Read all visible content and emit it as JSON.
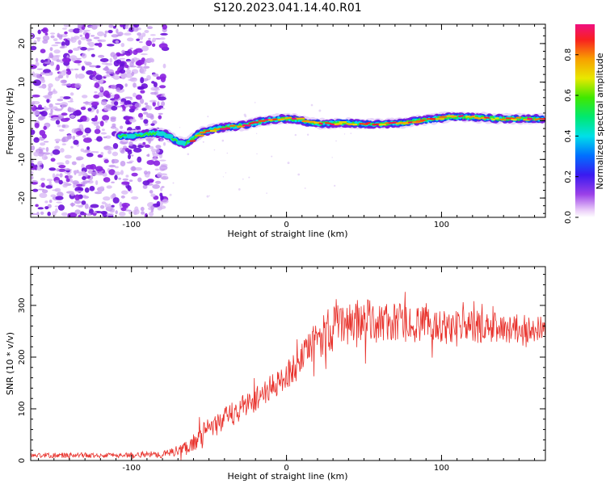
{
  "page_title": "S120.2023.041.14.40.R01",
  "chart_data": [
    {
      "type": "heatmap",
      "title": "",
      "xlabel": "Height of straight line (km)",
      "ylabel": "Frequency (Hz)",
      "xlim": [
        -165,
        167
      ],
      "ylim": [
        -25,
        25
      ],
      "x_ticks": [
        {
          "value": -100,
          "label": "-100"
        },
        {
          "value": 0,
          "label": "0"
        },
        {
          "value": 100,
          "label": "100"
        }
      ],
      "y_ticks": [
        {
          "value": -20,
          "label": "-20"
        },
        {
          "value": -10,
          "label": "-10"
        },
        {
          "value": 0,
          "label": "0"
        },
        {
          "value": 10,
          "label": "10"
        },
        {
          "value": 20,
          "label": "20"
        }
      ],
      "noise_region": {
        "x_range": [
          -165,
          -78
        ],
        "y_range": [
          -25,
          25
        ],
        "amplitude_range": [
          0.05,
          0.15
        ]
      },
      "ridge": {
        "x": [
          -108,
          -100,
          -92,
          -85,
          -78,
          -72,
          -66,
          -62,
          -55,
          -45,
          -35,
          -25,
          -15,
          -5,
          5,
          15,
          25,
          35,
          45,
          55,
          65,
          75,
          85,
          95,
          105,
          115,
          125,
          135,
          145,
          155,
          165
        ],
        "frequency": [
          -4,
          -4,
          -3.5,
          -3.2,
          -3.5,
          -5,
          -6,
          -5,
          -3,
          -2,
          -1.5,
          -1,
          0,
          0.5,
          0.5,
          -0.5,
          -0.8,
          -0.5,
          -0.8,
          -0.8,
          -0.8,
          -0.6,
          0,
          0.5,
          1,
          1,
          0.8,
          0.6,
          0.5,
          0.5,
          0.5
        ],
        "amplitude": [
          0.35,
          0.4,
          0.4,
          0.4,
          0.5,
          0.75,
          0.85,
          0.85,
          0.9,
          0.9,
          0.9,
          0.92,
          0.92,
          0.92,
          0.92,
          0.92,
          0.92,
          0.92,
          0.92,
          0.92,
          0.92,
          0.92,
          0.92,
          0.92,
          0.92,
          0.92,
          0.92,
          0.92,
          0.92,
          0.92,
          0.92
        ]
      },
      "colorbar": {
        "label": "Normalized spectral amplitude",
        "range": [
          0,
          0.95
        ],
        "ticks": [
          {
            "value": 0.0,
            "label": "0.0"
          },
          {
            "value": 0.2,
            "label": "0.2"
          },
          {
            "value": 0.4,
            "label": "0.4"
          },
          {
            "value": 0.6,
            "label": "0.6"
          },
          {
            "value": 0.8,
            "label": "0.8"
          }
        ],
        "colormap": "rainbow: white, violet, purple, blue, cyan, green, yellow, orange, red, magenta"
      },
      "grid": false
    },
    {
      "type": "line",
      "title": "",
      "xlabel": "Height of straight line (km)",
      "ylabel": "SNR (10 * v/v)",
      "xlim": [
        -165,
        167
      ],
      "ylim": [
        0,
        375
      ],
      "x_ticks": [
        {
          "value": -100,
          "label": "-100"
        },
        {
          "value": 0,
          "label": "0"
        },
        {
          "value": 100,
          "label": "100"
        }
      ],
      "y_ticks": [
        {
          "value": 0,
          "label": "0"
        },
        {
          "value": 100,
          "label": "100"
        },
        {
          "value": 200,
          "label": "200"
        },
        {
          "value": 300,
          "label": "300"
        }
      ],
      "color": "#e8302a",
      "grid": false,
      "series": [
        {
          "x": [
            -165,
            -150,
            -130,
            -110,
            -90,
            -80,
            -75,
            -70,
            -65,
            -60,
            -55,
            -50,
            -45,
            -40,
            -35,
            -30,
            -25,
            -20,
            -15,
            -10,
            -5,
            0,
            5,
            10,
            15,
            20,
            25,
            30,
            35,
            40,
            45,
            50,
            55,
            60,
            65,
            70,
            75,
            80,
            85,
            90,
            95,
            100,
            105,
            110,
            115,
            120,
            125,
            130,
            135,
            140,
            145,
            150,
            155,
            160,
            165
          ],
          "values": [
            10,
            10,
            10,
            10,
            12,
            12,
            15,
            20,
            25,
            35,
            50,
            60,
            70,
            80,
            90,
            100,
            110,
            120,
            130,
            140,
            150,
            165,
            180,
            195,
            215,
            235,
            250,
            255,
            262,
            268,
            270,
            270,
            268,
            268,
            266,
            266,
            265,
            264,
            263,
            262,
            262,
            262,
            261,
            260,
            260,
            258,
            258,
            256,
            256,
            255,
            255,
            255,
            255,
            254,
            254
          ],
          "noise_amplitude": [
            5,
            5,
            5,
            5,
            6,
            7,
            8,
            10,
            15,
            18,
            20,
            22,
            22,
            22,
            25,
            25,
            25,
            25,
            25,
            25,
            25,
            28,
            30,
            32,
            35,
            40,
            45,
            45,
            45,
            45,
            45,
            45,
            42,
            40,
            40,
            38,
            38,
            36,
            35,
            35,
            34,
            34,
            33,
            32,
            32,
            32,
            32,
            30,
            30,
            30,
            28,
            28,
            26,
            25,
            25
          ]
        }
      ]
    }
  ]
}
